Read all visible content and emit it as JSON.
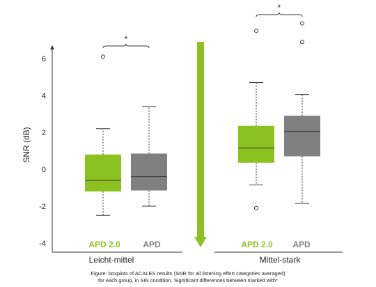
{
  "chart_data": {
    "type": "box",
    "ylabel": "SNR (dB)",
    "ylim": [
      -4,
      7
    ],
    "yticks": [
      -4,
      -2,
      0,
      2,
      4,
      6
    ],
    "groups": [
      {
        "label": "Leicht-mittel",
        "significance": "*",
        "series": [
          {
            "name": "APD 2.0",
            "color": "#8cc21f",
            "whisker_low": -2.5,
            "q1": -1.2,
            "median": -0.6,
            "q3": 0.8,
            "whisker_high": 2.2,
            "outliers": [
              6.1
            ]
          },
          {
            "name": "APD",
            "color": "#808080",
            "whisker_low": -2.0,
            "q1": -1.15,
            "median": -0.4,
            "q3": 0.85,
            "whisker_high": 3.4,
            "outliers": []
          }
        ]
      },
      {
        "label": "Mittel-stark",
        "significance": "*",
        "series": [
          {
            "name": "APD 2.0",
            "color": "#8cc21f",
            "whisker_low": -0.85,
            "q1": 0.35,
            "median": 1.15,
            "q3": 2.35,
            "whisker_high": 4.7,
            "outliers": [
              -2.1,
              7.5
            ]
          },
          {
            "name": "APD",
            "color": "#808080",
            "whisker_low": -1.85,
            "q1": 0.7,
            "median": 2.05,
            "q3": 2.9,
            "whisker_high": 4.05,
            "outliers": [
              6.9,
              7.9
            ]
          }
        ]
      }
    ],
    "arrow_color": "#8cc21f"
  },
  "caption": {
    "line1": "Figure: boxplots of ACALES results (SNR for all listening effort categories averaged)",
    "line2": "for each group, in SiN condition. Significant differences between marked with*"
  }
}
